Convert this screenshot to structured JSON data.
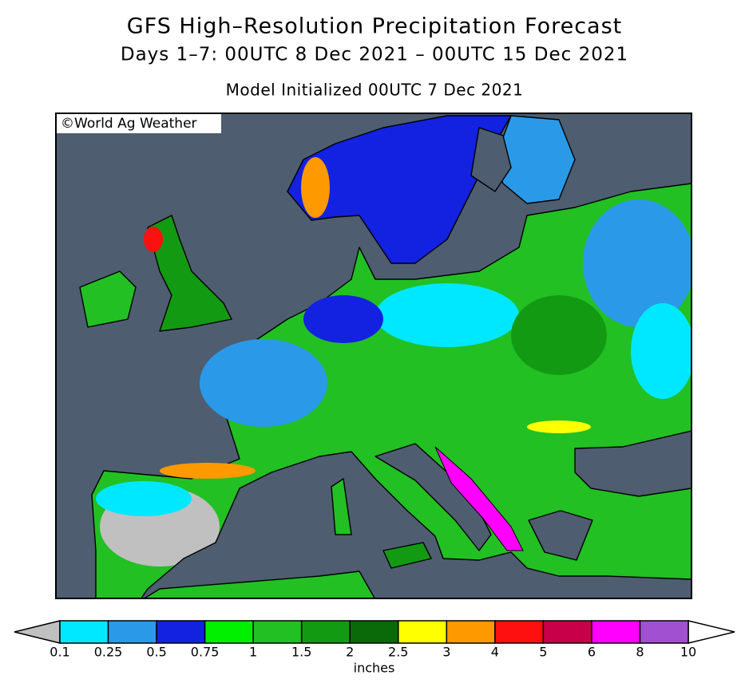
{
  "header": {
    "title": "GFS High–Resolution Precipitation Forecast",
    "subtitle": "Days 1–7: 00UTC 8 Dec 2021 – 00UTC 15 Dec 2021",
    "initialized": "Model Initialized 00UTC 7 Dec 2021"
  },
  "map": {
    "watermark": "©World Ag Weather"
  },
  "colorbar": {
    "ticks": [
      0.1,
      0.25,
      0.5,
      0.75,
      1,
      1.5,
      2,
      2.5,
      3,
      4,
      5,
      6,
      8,
      10
    ],
    "colors": [
      "#00e8ff",
      "#2a9ae8",
      "#1222e0",
      "#00f000",
      "#22c022",
      "#139a13",
      "#0a6a0a",
      "#ffff00",
      "#ff9900",
      "#ff1010",
      "#c8004a",
      "#ff00ff",
      "#a050d0"
    ],
    "under_color": "#c0c0c0",
    "over_color": "#ffffff",
    "unit": "inches"
  }
}
